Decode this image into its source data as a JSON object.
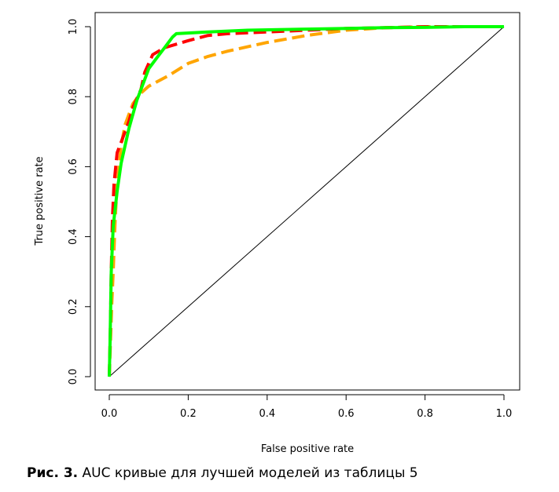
{
  "chart_data": {
    "type": "line",
    "title": "",
    "xlabel": "False positive rate",
    "ylabel": "True positive rate",
    "xlim": [
      0,
      1
    ],
    "ylim": [
      0,
      1
    ],
    "xticks": [
      0.0,
      0.2,
      0.4,
      0.6,
      0.8,
      1.0
    ],
    "yticks": [
      0.0,
      0.2,
      0.4,
      0.6,
      0.8,
      1.0
    ],
    "xtick_labels": [
      "0.0",
      "0.2",
      "0.4",
      "0.6",
      "0.8",
      "1.0"
    ],
    "ytick_labels": [
      "0.0",
      "0.2",
      "0.4",
      "0.6",
      "0.8",
      "1.0"
    ],
    "grid": false,
    "legend": "none",
    "reference_line": {
      "x": [
        0,
        1
      ],
      "y": [
        0,
        1
      ],
      "color": "#000000"
    },
    "series": [
      {
        "color": "#ffa500",
        "style": "dashed",
        "x": [
          0.0,
          0.003,
          0.006,
          0.01,
          0.015,
          0.02,
          0.03,
          0.04,
          0.05,
          0.06,
          0.08,
          0.1,
          0.15,
          0.2,
          0.25,
          0.3,
          0.4,
          0.5,
          0.6,
          0.7,
          0.8,
          0.9,
          1.0
        ],
        "y": [
          0.0,
          0.1,
          0.2,
          0.3,
          0.45,
          0.55,
          0.66,
          0.72,
          0.75,
          0.78,
          0.81,
          0.83,
          0.86,
          0.895,
          0.915,
          0.93,
          0.955,
          0.975,
          0.99,
          0.997,
          1.0,
          1.0,
          1.0
        ]
      },
      {
        "color": "#ff0000",
        "style": "dashed",
        "x": [
          0.0,
          0.003,
          0.005,
          0.008,
          0.012,
          0.02,
          0.03,
          0.04,
          0.05,
          0.06,
          0.08,
          0.09,
          0.11,
          0.14,
          0.17,
          0.2,
          0.25,
          0.3,
          0.4,
          0.5,
          0.6,
          0.7,
          0.8,
          0.9,
          1.0
        ],
        "y": [
          0.0,
          0.15,
          0.3,
          0.45,
          0.55,
          0.64,
          0.67,
          0.7,
          0.73,
          0.77,
          0.82,
          0.87,
          0.92,
          0.94,
          0.95,
          0.96,
          0.975,
          0.98,
          0.985,
          0.99,
          0.995,
          0.997,
          1.0,
          1.0,
          1.0
        ]
      },
      {
        "color": "#00ff00",
        "style": "solid",
        "x": [
          0.0,
          0.002,
          0.005,
          0.01,
          0.02,
          0.03,
          0.04,
          0.05,
          0.06,
          0.07,
          0.08,
          0.09,
          0.1,
          0.12,
          0.14,
          0.16,
          0.17,
          0.25,
          0.35,
          0.5,
          0.6,
          0.7,
          0.8,
          0.9,
          1.0
        ],
        "y": [
          0.0,
          0.1,
          0.3,
          0.43,
          0.53,
          0.61,
          0.66,
          0.71,
          0.75,
          0.79,
          0.82,
          0.85,
          0.88,
          0.91,
          0.94,
          0.97,
          0.98,
          0.985,
          0.99,
          0.993,
          0.995,
          0.997,
          0.998,
          1.0,
          1.0
        ]
      }
    ]
  },
  "caption": {
    "label": "Рис. 3.",
    "text": " AUC кривые для лучшей моделей из таблицы 5"
  }
}
